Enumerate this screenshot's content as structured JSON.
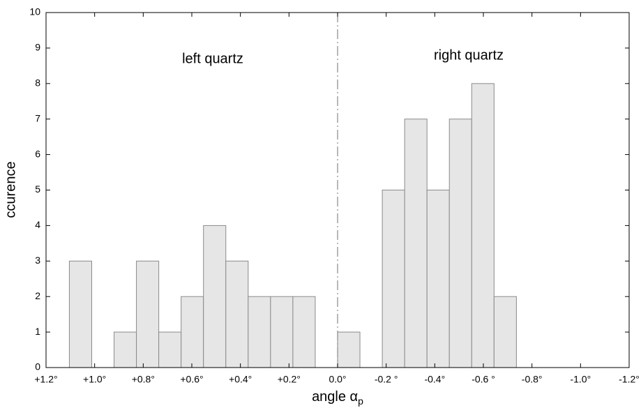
{
  "chart_data": {
    "type": "histogram",
    "x_label": "angle α",
    "x_label_sub": "p",
    "y_label": "ccurence",
    "annotations": [
      "left quartz",
      "right quartz"
    ],
    "bins": [
      1.104,
      1.012,
      0.92,
      0.828,
      0.736,
      0.644,
      0.552,
      0.46,
      0.368,
      0.276,
      0.184,
      0.092,
      0,
      -0.092,
      -0.184,
      -0.276,
      -0.368,
      -0.46,
      -0.552,
      -0.644,
      -0.736
    ],
    "counts": [
      3,
      0,
      1,
      3,
      1,
      2,
      4,
      3,
      2,
      2,
      2,
      0,
      1,
      0,
      5,
      7,
      5,
      7,
      8,
      2
    ],
    "color": "#e6e6e6",
    "xlim": [
      1.2,
      -1.2
    ],
    "xticks": [
      {
        "value": 1.2,
        "label": "+1.2°"
      },
      {
        "value": 1.0,
        "label": "+1.0°"
      },
      {
        "value": 0.8,
        "label": "+0.8°"
      },
      {
        "value": 0.6,
        "label": "+0.6°"
      },
      {
        "value": 0.4,
        "label": "+0.4°"
      },
      {
        "value": 0.2,
        "label": "+0.2°"
      },
      {
        "value": 0,
        "label": "0.0°"
      },
      {
        "value": -0.2,
        "label": "-0.2 °"
      },
      {
        "value": -0.4,
        "label": "-0.4°"
      },
      {
        "value": -0.6,
        "label": "-0.6 °"
      },
      {
        "value": -0.8,
        "label": "-0.8°"
      },
      {
        "value": -1.0,
        "label": "-1.0°"
      },
      {
        "value": -1.2,
        "label": "-1.2°"
      }
    ],
    "ylim": [
      0,
      10
    ],
    "yticks": [
      0,
      1,
      2,
      3,
      4,
      5,
      6,
      7,
      8,
      9,
      10
    ],
    "divider_x": 0
  }
}
